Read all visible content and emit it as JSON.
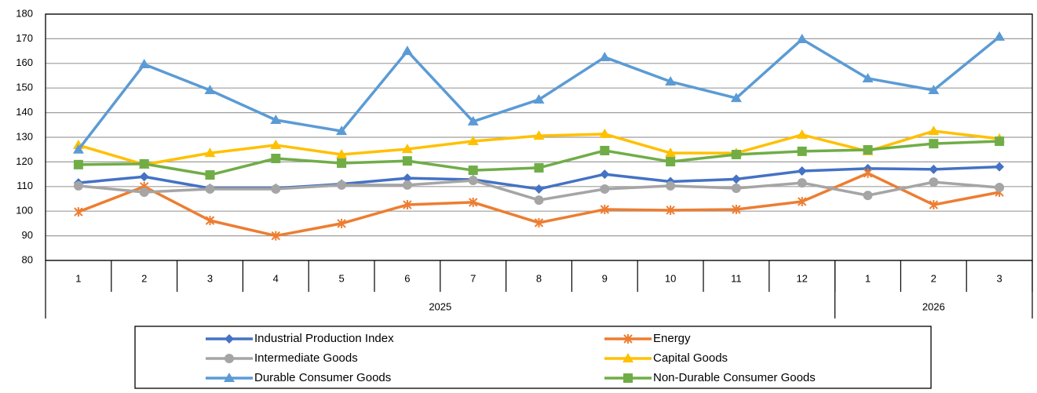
{
  "chart_data": {
    "type": "line",
    "groups": [
      {
        "label": "2025",
        "categories": [
          "1",
          "2",
          "3",
          "4",
          "5",
          "6",
          "7",
          "8",
          "9",
          "10",
          "11",
          "12"
        ]
      },
      {
        "label": "2026",
        "categories": [
          "1",
          "2",
          "3"
        ]
      }
    ],
    "series": [
      {
        "name": "Industrial Production Index",
        "color": "#4472c4",
        "marker": "diamond",
        "values": [
          111.5,
          114,
          109.3,
          109.3,
          111,
          113.4,
          112.8,
          109,
          115,
          112,
          113,
          116.3,
          117.3,
          117,
          118
        ]
      },
      {
        "name": "Energy",
        "color": "#ed7d31",
        "marker": "star",
        "values": [
          99.7,
          110,
          96.2,
          90,
          95,
          102.6,
          103.6,
          95.3,
          100.7,
          100.4,
          100.7,
          103.9,
          115.4,
          102.6,
          107.7
        ]
      },
      {
        "name": "Intermediate Goods",
        "color": "#a5a5a5",
        "marker": "circle",
        "values": [
          110.3,
          107.7,
          109,
          109,
          110.6,
          110.6,
          112.5,
          104.5,
          109,
          110.3,
          109.3,
          111.5,
          106.4,
          111.8,
          109.6
        ]
      },
      {
        "name": "Capital Goods",
        "color": "#ffc000",
        "marker": "triangle",
        "values": [
          126.8,
          118.9,
          123.6,
          126.8,
          123,
          125.2,
          128.4,
          130.6,
          131.3,
          123.6,
          123.6,
          131,
          124.3,
          132.5,
          129.4
        ]
      },
      {
        "name": "Durable Consumer Goods",
        "color": "#5b9bd5",
        "marker": "triangle",
        "values": [
          125,
          159.6,
          149.1,
          137,
          132.5,
          165,
          136.4,
          145.3,
          162.5,
          152.6,
          145.9,
          169.8,
          153.9,
          149.1,
          170.8
        ]
      },
      {
        "name": "Non-Durable Consumer Goods",
        "color": "#70ad47",
        "marker": "square",
        "values": [
          118.9,
          119.2,
          114.7,
          121.4,
          119.5,
          120.4,
          116.6,
          117.6,
          124.6,
          120.1,
          123,
          124.3,
          124.9,
          127.4,
          128.4
        ]
      }
    ],
    "ylim": [
      80,
      180
    ],
    "yticks": [
      80,
      90,
      100,
      110,
      120,
      130,
      140,
      150,
      160,
      170,
      180
    ],
    "grid": true,
    "legend": "bottom"
  }
}
